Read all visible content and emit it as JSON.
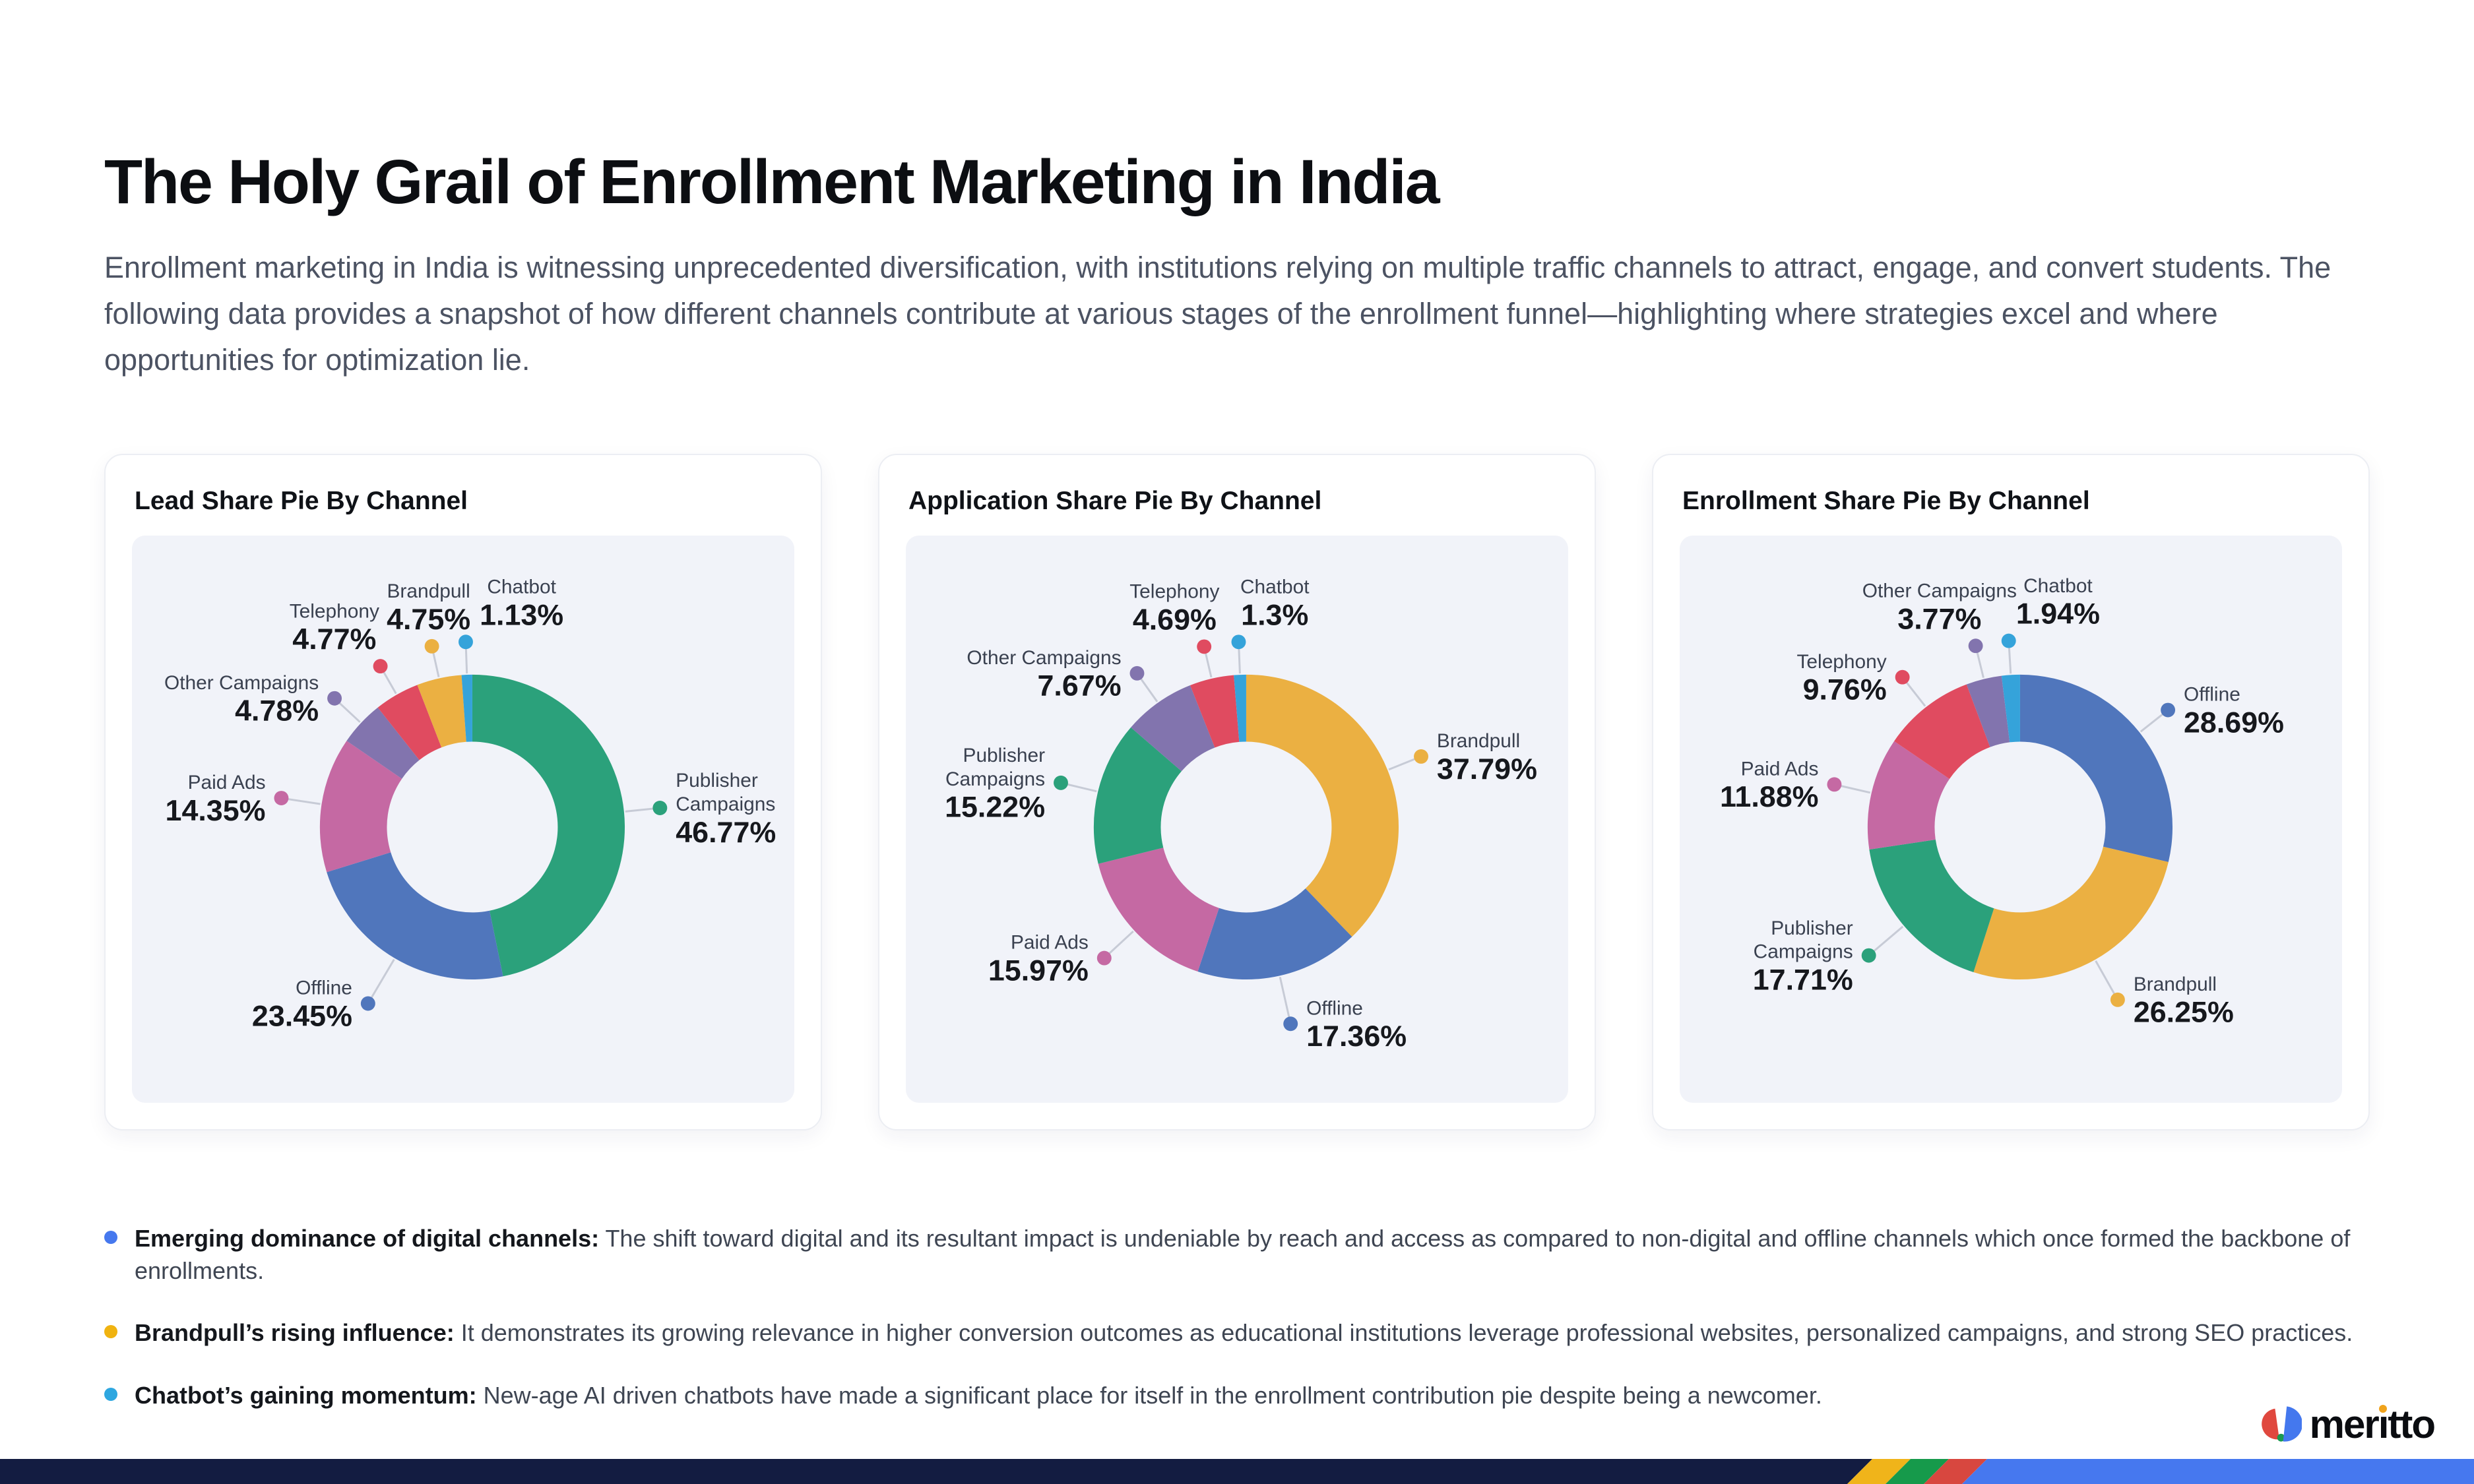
{
  "page": {
    "title": "The Holy Grail of Enrollment Marketing in India",
    "intro": "Enrollment marketing in India is witnessing unprecedented diversification, with institutions relying on multiple traffic channels to attract, engage, and convert students. The following data provides a snapshot of how different channels contribute at various stages of the enrollment funnel—highlighting where strategies excel and where opportunities for optimization lie."
  },
  "chart_data": [
    {
      "type": "pie",
      "donut": true,
      "title": "Lead Share Pie By Channel",
      "start_angle": 0,
      "direction": "clockwise",
      "labels_style": "callout",
      "slices": [
        {
          "label": "Publisher Campaigns",
          "value": 46.77,
          "color": "#2BA17B"
        },
        {
          "label": "Offline",
          "value": 23.45,
          "color": "#5076BC"
        },
        {
          "label": "Paid Ads",
          "value": 14.35,
          "color": "#C569A3"
        },
        {
          "label": "Other Campaigns",
          "value": 4.78,
          "color": "#8274AE"
        },
        {
          "label": "Telephony",
          "value": 4.77,
          "color": "#E04B60"
        },
        {
          "label": "Brandpull",
          "value": 4.75,
          "color": "#EBB042"
        },
        {
          "label": "Chatbot",
          "value": 1.13,
          "color": "#35A3DA"
        }
      ]
    },
    {
      "type": "pie",
      "donut": true,
      "title": "Application Share Pie By Channel",
      "start_angle": 0,
      "direction": "clockwise",
      "labels_style": "callout",
      "slices": [
        {
          "label": "Brandpull",
          "value": 37.79,
          "color": "#EBB042"
        },
        {
          "label": "Offline",
          "value": 17.36,
          "color": "#5076BC"
        },
        {
          "label": "Paid Ads",
          "value": 15.97,
          "color": "#C569A3"
        },
        {
          "label": "Publisher Campaigns",
          "value": 15.22,
          "color": "#2BA17B"
        },
        {
          "label": "Other Campaigns",
          "value": 7.67,
          "color": "#8274AE"
        },
        {
          "label": "Telephony",
          "value": 4.69,
          "color": "#E04B60"
        },
        {
          "label": "Chatbot",
          "value": 1.3,
          "color": "#35A3DA"
        }
      ]
    },
    {
      "type": "pie",
      "donut": true,
      "title": "Enrollment Share Pie By Channel",
      "start_angle": 0,
      "direction": "clockwise",
      "labels_style": "callout",
      "slices": [
        {
          "label": "Offline",
          "value": 28.69,
          "color": "#5076BC"
        },
        {
          "label": "Brandpull",
          "value": 26.25,
          "color": "#EBB042"
        },
        {
          "label": "Publisher Campaigns",
          "value": 17.71,
          "color": "#2BA17B"
        },
        {
          "label": "Paid Ads",
          "value": 11.88,
          "color": "#C569A3"
        },
        {
          "label": "Telephony",
          "value": 9.76,
          "color": "#E04B60"
        },
        {
          "label": "Other Campaigns",
          "value": 3.77,
          "color": "#8274AE"
        },
        {
          "label": "Chatbot",
          "value": 1.94,
          "color": "#35A3DA"
        }
      ]
    }
  ],
  "insights": [
    {
      "dot_color": "#4678EE",
      "lead": "Emerging dominance of digital channels:",
      "text": " The shift toward digital and its resultant impact is undeniable by reach and access as compared to non-digital and offline channels which once formed the backbone of enrollments."
    },
    {
      "dot_color": "#F0B310",
      "lead": "Brandpull’s rising influence:",
      "text": " It demonstrates its growing relevance in higher conversion outcomes as educational institutions leverage professional websites, personalized campaigns, and strong SEO practices."
    },
    {
      "dot_color": "#2EA7E0",
      "lead": "Chatbot’s gaining momentum:",
      "text": " New-age AI driven chatbots have made a significant place for itself in the enrollment contribution pie despite being a newcomer."
    }
  ],
  "footer": {
    "logo_text": "meritto",
    "logo_red": "#E0483E",
    "logo_green": "#1B9A50",
    "logo_blue": "#4478EE",
    "logo_dot": "#F0A31C",
    "bar_navy": "#131C41",
    "bar_blue": "#4678EF",
    "stripe_yellow": "#F0B41A",
    "stripe_green": "#169A4B",
    "stripe_red": "#D8473F",
    "leader_line_color": "#C7CBD6",
    "panel_bg": "#F1F3F9"
  }
}
